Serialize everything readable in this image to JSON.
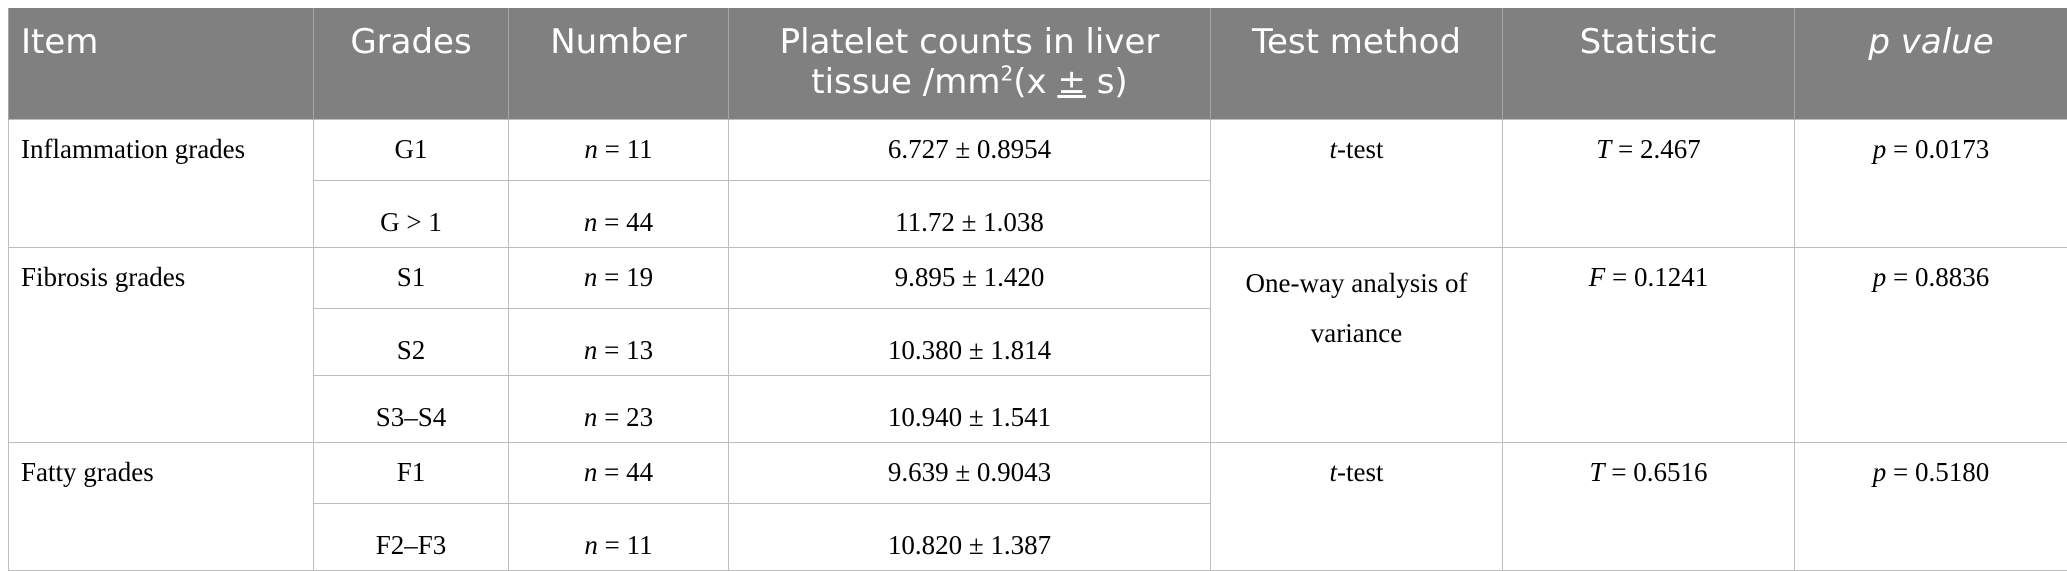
{
  "headers": {
    "item": "Item",
    "grades": "Grades",
    "number": "Number",
    "platelet_line1": "Platelet counts in liver",
    "platelet_line2_a": "tissue /mm",
    "platelet_line2_sup": "2",
    "platelet_line2_b": "(x ",
    "platelet_line2_pm": "±",
    "platelet_line2_c": " s)",
    "test_method": "Test method",
    "statistic": "Statistic",
    "p_value": "p value"
  },
  "groups": {
    "inflammation": {
      "item": "Inflammation grades",
      "test_prefix": "t",
      "test_suffix": "-test",
      "stat_symbol": "T",
      "stat_value": " = 2.467",
      "p_symbol": "p",
      "p_value": " = 0.0173",
      "rows": [
        {
          "grade": "G1",
          "n_symbol": "n",
          "n_value": " = 11",
          "platelet": "6.727 ± 0.8954"
        },
        {
          "grade": "G > 1",
          "n_symbol": "n",
          "n_value": " = 44",
          "platelet": "11.72 ± 1.038"
        }
      ]
    },
    "fibrosis": {
      "item": "Fibrosis grades",
      "test_line1": "One-way analysis of",
      "test_line2": "variance",
      "stat_symbol": "F",
      "stat_value": " = 0.1241",
      "p_symbol": "p",
      "p_value": " = 0.8836",
      "rows": [
        {
          "grade": "S1",
          "n_symbol": "n",
          "n_value": " = 19",
          "platelet": "9.895 ± 1.420"
        },
        {
          "grade": "S2",
          "n_symbol": "n",
          "n_value": " = 13",
          "platelet": "10.380 ± 1.814"
        },
        {
          "grade": "S3–S4",
          "n_symbol": "n",
          "n_value": " = 23",
          "platelet": "10.940 ± 1.541"
        }
      ]
    },
    "fatty": {
      "item": "Fatty grades",
      "test_prefix": "t",
      "test_suffix": "-test",
      "stat_symbol": "T",
      "stat_value": " = 0.6516",
      "p_symbol": "p",
      "p_value": " = 0.5180",
      "rows": [
        {
          "grade": "F1",
          "n_symbol": "n",
          "n_value": " = 44",
          "platelet": "9.639 ± 0.9043"
        },
        {
          "grade": "F2–F3",
          "n_symbol": "n",
          "n_value": " = 11",
          "platelet": "10.820 ± 1.387"
        }
      ]
    }
  }
}
